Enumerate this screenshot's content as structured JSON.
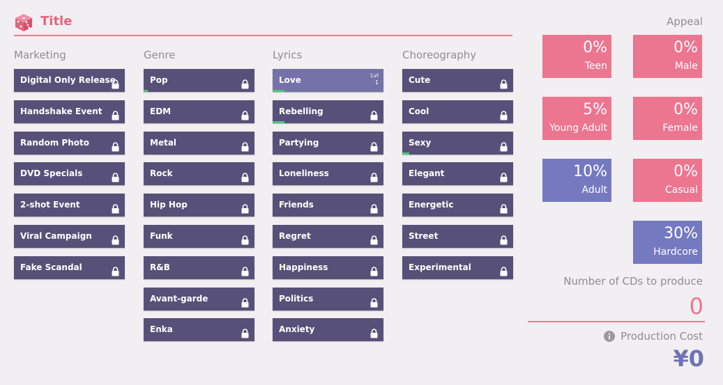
{
  "header": {
    "title": "Title",
    "icon": "dice-icon"
  },
  "columns": [
    {
      "key": "marketing",
      "label": "Marketing",
      "options": [
        {
          "label": "Digital Only Release",
          "locked": true
        },
        {
          "label": "Handshake Event",
          "locked": true
        },
        {
          "label": "Random Photo",
          "locked": true
        },
        {
          "label": "DVD Specials",
          "locked": true
        },
        {
          "label": "2-shot Event",
          "locked": true
        },
        {
          "label": "Viral Campaign",
          "locked": true
        },
        {
          "label": "Fake Scandal",
          "locked": true
        }
      ]
    },
    {
      "key": "genre",
      "label": "Genre",
      "options": [
        {
          "label": "Pop",
          "locked": true,
          "progress": 0.04
        },
        {
          "label": "EDM",
          "locked": true
        },
        {
          "label": "Metal",
          "locked": true
        },
        {
          "label": "Rock",
          "locked": true
        },
        {
          "label": "Hip Hop",
          "locked": true
        },
        {
          "label": "Funk",
          "locked": true
        },
        {
          "label": "R&B",
          "locked": true
        },
        {
          "label": "Avant-garde",
          "locked": true
        },
        {
          "label": "Enka",
          "locked": true
        }
      ]
    },
    {
      "key": "lyrics",
      "label": "Lyrics",
      "options": [
        {
          "label": "Love",
          "locked": false,
          "selected": true,
          "level_label": "Lvl",
          "level": "1",
          "progress": 0.11
        },
        {
          "label": "Rebelling",
          "locked": true,
          "progress": 0.11
        },
        {
          "label": "Partying",
          "locked": true
        },
        {
          "label": "Loneliness",
          "locked": true
        },
        {
          "label": "Friends",
          "locked": true
        },
        {
          "label": "Regret",
          "locked": true
        },
        {
          "label": "Happiness",
          "locked": true
        },
        {
          "label": "Politics",
          "locked": true
        },
        {
          "label": "Anxiety",
          "locked": true
        }
      ]
    },
    {
      "key": "choreography",
      "label": "Choreography",
      "options": [
        {
          "label": "Cute",
          "locked": true
        },
        {
          "label": "Cool",
          "locked": true
        },
        {
          "label": "Sexy",
          "locked": true,
          "progress": 0.06
        },
        {
          "label": "Elegant",
          "locked": true
        },
        {
          "label": "Energetic",
          "locked": true
        },
        {
          "label": "Street",
          "locked": true
        },
        {
          "label": "Experimental",
          "locked": true
        }
      ]
    }
  ],
  "appeal": {
    "header": "Appeal",
    "items": [
      {
        "value": "0%",
        "label": "Teen",
        "color": "#ec7590"
      },
      {
        "value": "0%",
        "label": "Male",
        "color": "#ec7590"
      },
      {
        "value": "5%",
        "label": "Young Adult",
        "color": "#ec7590"
      },
      {
        "value": "0%",
        "label": "Female",
        "color": "#ec7590"
      },
      {
        "value": "10%",
        "label": "Adult",
        "color": "#7579c0"
      },
      {
        "value": "0%",
        "label": "Casual",
        "color": "#ec7590"
      },
      {
        "value": "30%",
        "label": "Hardcore",
        "color": "#7579c0"
      }
    ]
  },
  "production": {
    "cd_label": "Number of CDs to produce",
    "cd_value": "0",
    "cost_label": "Production Cost",
    "cost_value": "¥0",
    "info_icon": "info-icon"
  },
  "colors": {
    "accent": "#e4647f",
    "option_bg": "#575179",
    "option_selected": "#7472a9",
    "progress": "#4cc47a"
  }
}
